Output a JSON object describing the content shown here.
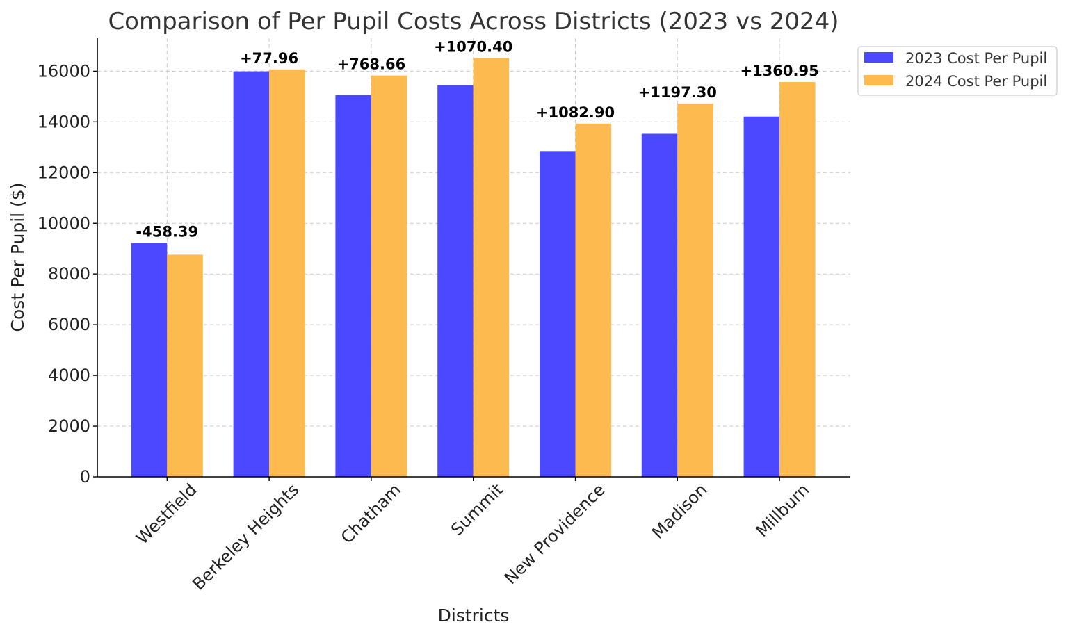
{
  "chart_data": {
    "type": "bar",
    "title": "Comparison of Per Pupil Costs Across Districts (2023 vs 2024)",
    "xlabel": "Districts",
    "ylabel": "Cost Per Pupil ($)",
    "ylim": [
      0,
      17300
    ],
    "yticks": [
      0,
      2000,
      4000,
      6000,
      8000,
      10000,
      12000,
      14000,
      16000
    ],
    "grid": true,
    "legend_position": "outside-top-right",
    "categories": [
      "Westfield",
      "Berkeley Heights",
      "Chatham",
      "Summit",
      "New Providence",
      "Madison",
      "Millburn"
    ],
    "series": [
      {
        "name": "2023 Cost Per Pupil",
        "color": "#4B49FF",
        "values": [
          9220,
          15995,
          15060,
          15450,
          12850,
          13530,
          14210
        ]
      },
      {
        "name": "2024 Cost Per Pupil",
        "color": "#FDBB4F",
        "values": [
          8761.61,
          16072.96,
          15828.66,
          16520.4,
          13932.9,
          14727.3,
          15570.95
        ]
      }
    ],
    "annotations": [
      "-458.39",
      "+77.96",
      "+768.66",
      "+1070.40",
      "+1082.90",
      "+1197.30",
      "+1360.95"
    ]
  }
}
